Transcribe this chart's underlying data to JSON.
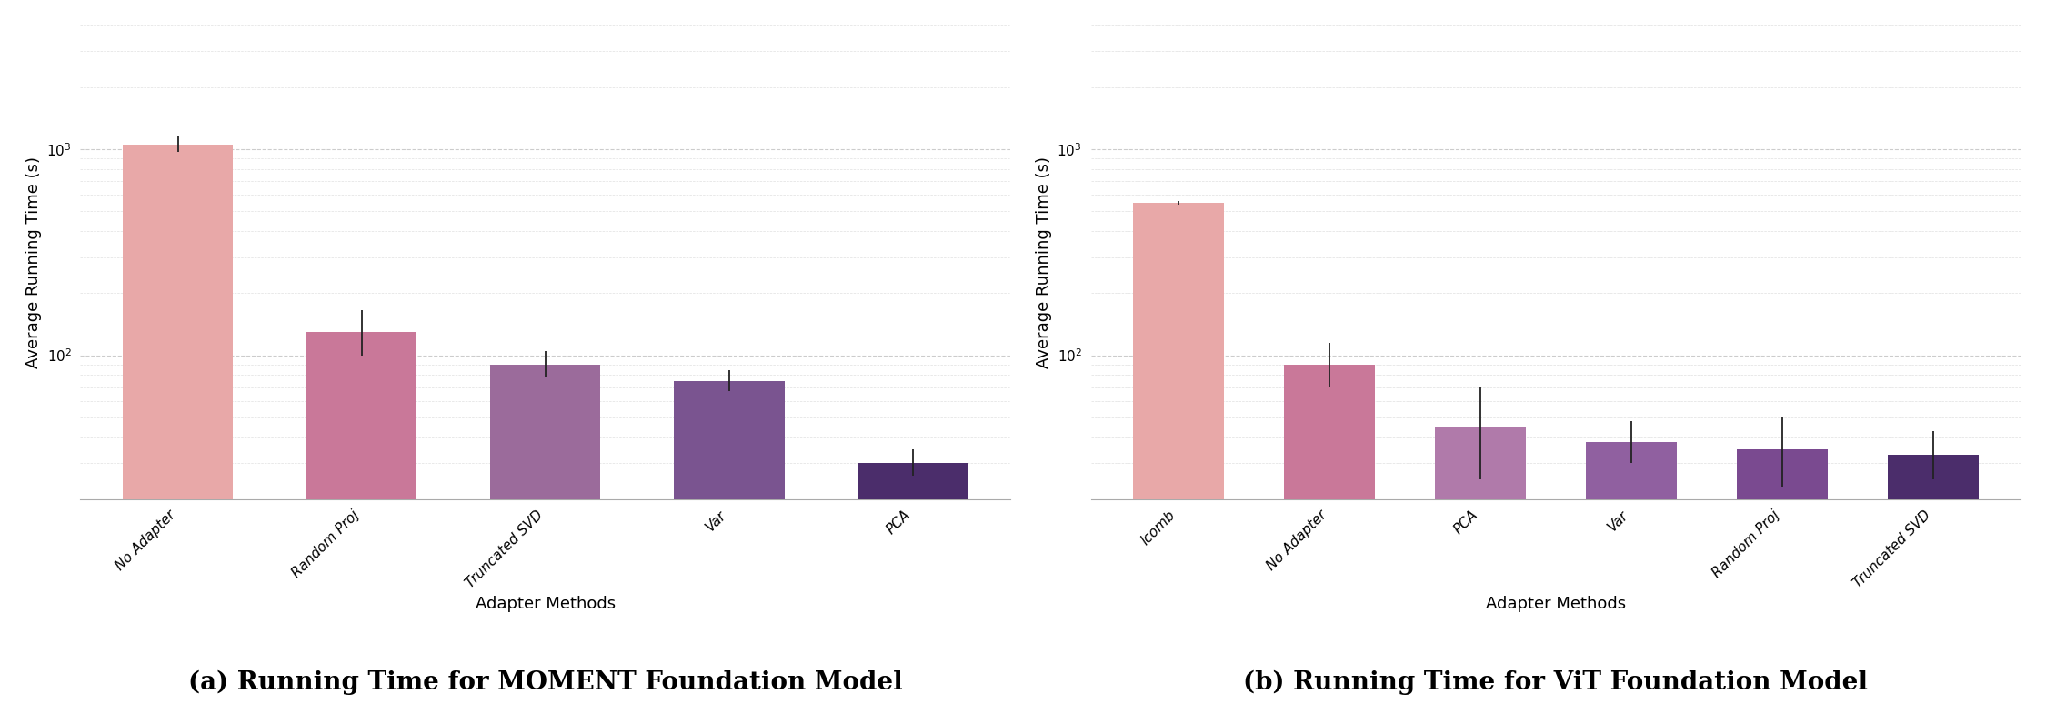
{
  "left": {
    "categories": [
      "No Adapter",
      "Random Proj",
      "Truncated SVD",
      "Var",
      "PCA"
    ],
    "values": [
      1050,
      130,
      90,
      75,
      30
    ],
    "yerr_lower": [
      80,
      30,
      12,
      8,
      4
    ],
    "yerr_upper": [
      120,
      35,
      15,
      10,
      5
    ],
    "colors": [
      "#e8a8a8",
      "#c97899",
      "#9b6b9b",
      "#7a5490",
      "#4b2d6b"
    ],
    "xlabel": "Adapter Methods",
    "ylabel": "Average Running Time (s)",
    "ylim_log": [
      20,
      4000
    ]
  },
  "right": {
    "categories": [
      "lcomb",
      "No Adapter",
      "PCA",
      "Var",
      "Random Proj",
      "Truncated SVD"
    ],
    "values": [
      550,
      90,
      45,
      38,
      35,
      33
    ],
    "yerr_lower": [
      10,
      20,
      20,
      8,
      12,
      8
    ],
    "yerr_upper": [
      10,
      25,
      25,
      10,
      15,
      10
    ],
    "colors": [
      "#e8a8a8",
      "#c97899",
      "#b07aaa",
      "#9060a0",
      "#7a4a90",
      "#4b2d6b"
    ],
    "xlabel": "Adapter Methods",
    "ylabel": "Average Running Time (s)",
    "ylim_log": [
      20,
      4000
    ]
  },
  "background_color": "#ffffff",
  "grid_color": "#cccccc",
  "caption_left": "(a) Running Time for MOMENT Foundation Model",
  "caption_right": "(b) Running Time for ViT Foundation Model",
  "caption_fontsize": 20,
  "axis_label_fontsize": 13,
  "tick_fontsize": 11,
  "errorbar_color": "#222222",
  "spine_color": "#aaaaaa"
}
